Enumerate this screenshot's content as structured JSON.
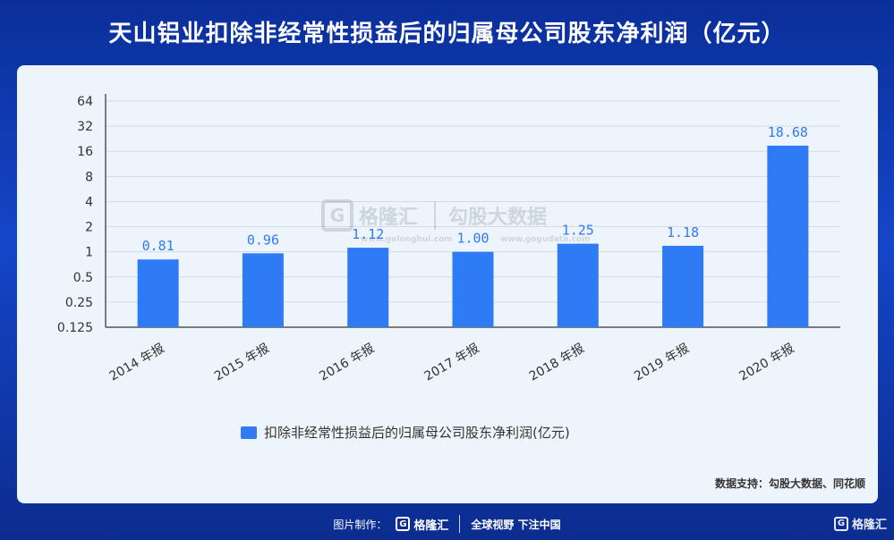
{
  "title": "天山铝业扣除非经常性损益后的归属母公司股东净利润（亿元）",
  "chart_data": {
    "type": "bar",
    "categories": [
      "2014 年报",
      "2015 年报",
      "2016 年报",
      "2017 年报",
      "2018 年报",
      "2019 年报",
      "2020 年报"
    ],
    "values": [
      0.81,
      0.96,
      1.12,
      1.0,
      1.25,
      1.18,
      18.68
    ],
    "data_labels": [
      "0.81",
      "0.96",
      "1.12",
      "1.00",
      "1.25",
      "1.18",
      "18.68"
    ],
    "yscale": "log2",
    "ylim": [
      0.125,
      64
    ],
    "yticks": [
      "0.125",
      "0.25",
      "0.5",
      "1",
      "2",
      "4",
      "8",
      "16",
      "32",
      "64"
    ],
    "ytick_values": [
      0.125,
      0.25,
      0.5,
      1,
      2,
      4,
      8,
      16,
      32,
      64
    ],
    "grid": true,
    "legend_position": "bottom",
    "series_name": "扣除非经常性损益后的归属母公司股东净利润(亿元)",
    "bar_color": "#2f7bf5",
    "label_color": "#2f7bf5"
  },
  "source": "数据支持：勾股大数据、同花顺",
  "watermark": {
    "brand": "格隆汇",
    "brand_url": "www.gelonghui.com",
    "partner": "勾股大数据",
    "partner_url": "www.gogudata.com"
  },
  "footer": {
    "label": "图片制作：",
    "brand": "格隆汇",
    "slogan": "全球视野 下注中国",
    "corner_brand": "格隆汇"
  }
}
